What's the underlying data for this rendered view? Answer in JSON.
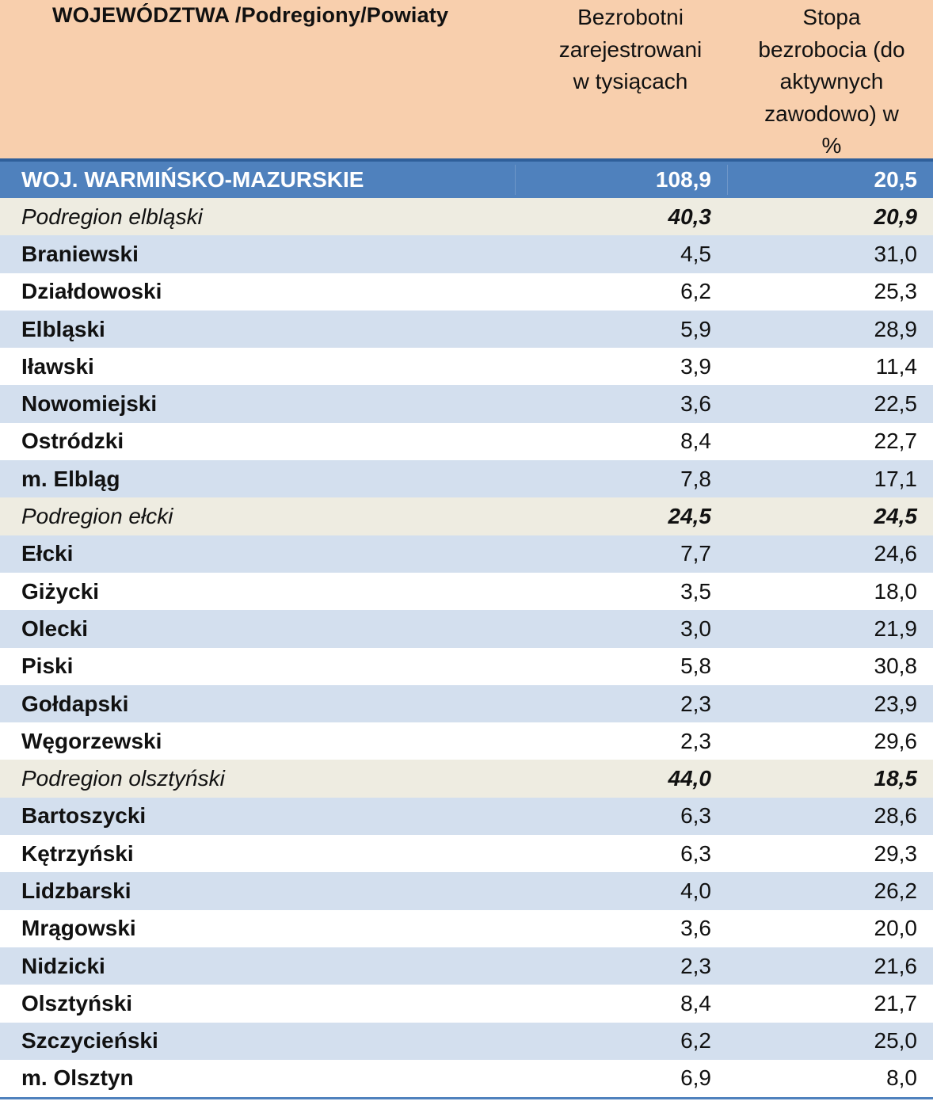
{
  "header": {
    "col1": "WOJEWÓDZTWA /Podregiony/Powiaty",
    "col2_lines": [
      "Bezrobotni",
      "zarejestrowani",
      "w tysiącach"
    ],
    "col3_lines": [
      "Stopa",
      "bezrobocia  (do",
      "aktywnych",
      "zawodowo) w",
      "%"
    ]
  },
  "colors": {
    "header_bg": "#f8cfad",
    "voivodeship_bg": "#4f81bd",
    "subregion_bg": "#eeece1",
    "band_blue": "#d3dfee"
  },
  "rows": [
    {
      "type": "woj",
      "name": "WOJ. WARMIŃSKO-MAZURSKIE",
      "unemployed": "108,9",
      "rate": "20,5"
    },
    {
      "type": "sub",
      "name": "Podregion elbląski",
      "unemployed": "40,3",
      "rate": "20,9"
    },
    {
      "type": "pow",
      "name": "Braniewski",
      "unemployed": "4,5",
      "rate": "31,0"
    },
    {
      "type": "pow",
      "name": "Działdowoski",
      "unemployed": "6,2",
      "rate": "25,3"
    },
    {
      "type": "pow",
      "name": "Elbląski",
      "unemployed": "5,9",
      "rate": "28,9"
    },
    {
      "type": "pow",
      "name": "Iławski",
      "unemployed": "3,9",
      "rate": "11,4"
    },
    {
      "type": "pow",
      "name": "Nowomiejski",
      "unemployed": "3,6",
      "rate": "22,5"
    },
    {
      "type": "pow",
      "name": "Ostródzki",
      "unemployed": "8,4",
      "rate": "22,7"
    },
    {
      "type": "pow",
      "name": "m. Elbląg",
      "unemployed": "7,8",
      "rate": "17,1"
    },
    {
      "type": "sub",
      "name": "Podregion ełcki",
      "unemployed": "24,5",
      "rate": "24,5"
    },
    {
      "type": "pow",
      "name": "Ełcki",
      "unemployed": "7,7",
      "rate": "24,6"
    },
    {
      "type": "pow",
      "name": "Giżycki",
      "unemployed": "3,5",
      "rate": "18,0"
    },
    {
      "type": "pow",
      "name": "Olecki",
      "unemployed": "3,0",
      "rate": "21,9"
    },
    {
      "type": "pow",
      "name": "Piski",
      "unemployed": "5,8",
      "rate": "30,8"
    },
    {
      "type": "pow",
      "name": "Gołdapski",
      "unemployed": "2,3",
      "rate": "23,9"
    },
    {
      "type": "pow",
      "name": "Węgorzewski",
      "unemployed": "2,3",
      "rate": "29,6"
    },
    {
      "type": "sub",
      "name": "Podregion olsztyński",
      "unemployed": "44,0",
      "rate": "18,5"
    },
    {
      "type": "pow",
      "name": "Bartoszycki",
      "unemployed": "6,3",
      "rate": "28,6"
    },
    {
      "type": "pow",
      "name": "Kętrzyński",
      "unemployed": "6,3",
      "rate": "29,3"
    },
    {
      "type": "pow",
      "name": "Lidzbarski",
      "unemployed": "4,0",
      "rate": "26,2"
    },
    {
      "type": "pow",
      "name": "Mrągowski",
      "unemployed": "3,6",
      "rate": "20,0"
    },
    {
      "type": "pow",
      "name": "Nidzicki",
      "unemployed": "2,3",
      "rate": "21,6"
    },
    {
      "type": "pow",
      "name": "Olsztyński",
      "unemployed": "8,4",
      "rate": "21,7"
    },
    {
      "type": "pow",
      "name": "Szczycieński",
      "unemployed": "6,2",
      "rate": "25,0"
    },
    {
      "type": "pow",
      "name": "m. Olsztyn",
      "unemployed": "6,9",
      "rate": "8,0"
    }
  ]
}
